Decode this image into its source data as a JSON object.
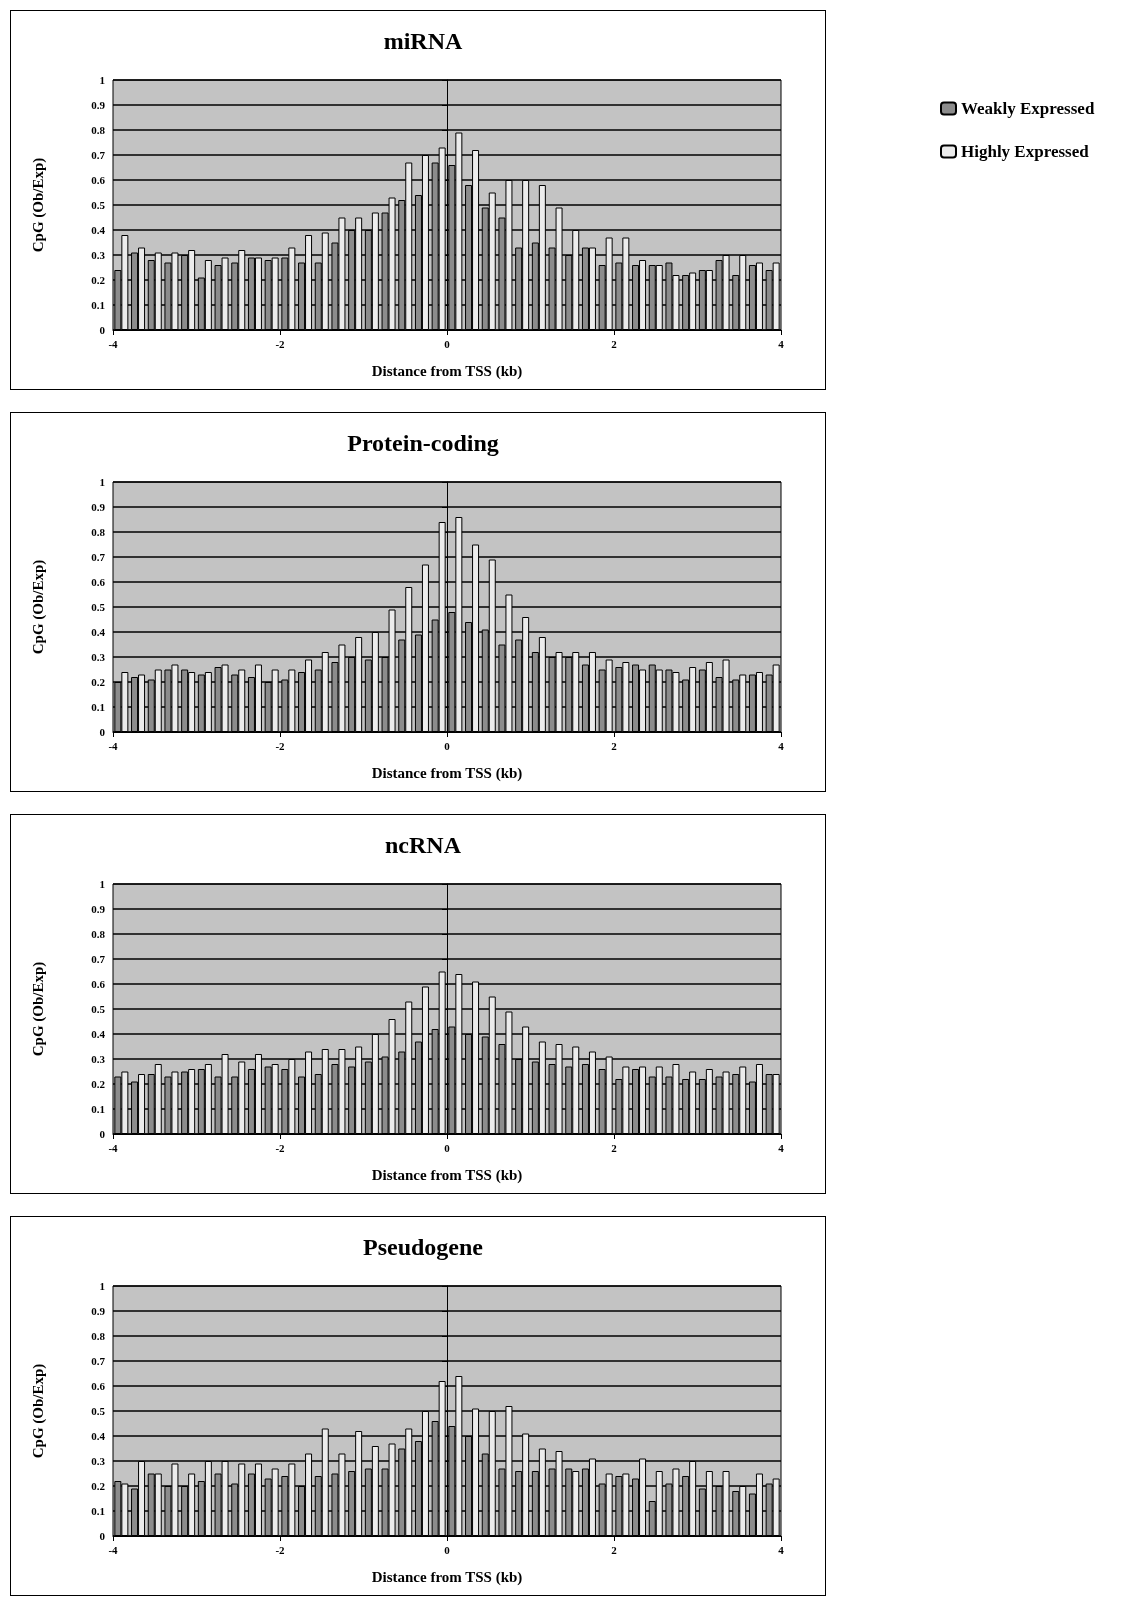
{
  "chart_data": [
    {
      "type": "bar",
      "title": "miRNA",
      "xlabel": "Distance from TSS (kb)",
      "ylabel": "CpG (Ob/Exp)",
      "legend": "right",
      "grid": "y",
      "xlim": [
        -4,
        4
      ],
      "xticks": [
        -4,
        -2,
        0,
        2,
        4
      ],
      "ylim": [
        0,
        1
      ],
      "yticks": [
        0,
        0.1,
        0.2,
        0.3,
        0.4,
        0.5,
        0.6,
        0.7,
        0.8,
        0.9,
        1
      ],
      "x": [
        -3.9,
        -3.7,
        -3.5,
        -3.3,
        -3.1,
        -2.9,
        -2.7,
        -2.5,
        -2.3,
        -2.1,
        -1.9,
        -1.7,
        -1.5,
        -1.3,
        -1.1,
        -0.9,
        -0.7,
        -0.5,
        -0.3,
        -0.1,
        0.1,
        0.3,
        0.5,
        0.7,
        0.9,
        1.1,
        1.3,
        1.5,
        1.7,
        1.9,
        2.1,
        2.3,
        2.5,
        2.7,
        2.9,
        3.1,
        3.3,
        3.5,
        3.7,
        3.9
      ],
      "series": [
        {
          "name": "Weakly Expressed",
          "color": "#8c8c8c",
          "values": [
            0.24,
            0.31,
            0.28,
            0.27,
            0.3,
            0.21,
            0.26,
            0.27,
            0.29,
            0.28,
            0.29,
            0.27,
            0.27,
            0.35,
            0.4,
            0.4,
            0.47,
            0.52,
            0.54,
            0.67,
            0.66,
            0.58,
            0.49,
            0.45,
            0.33,
            0.35,
            0.33,
            0.3,
            0.33,
            0.26,
            0.27,
            0.26,
            0.26,
            0.27,
            0.22,
            0.24,
            0.28,
            0.22,
            0.26,
            0.24
          ]
        },
        {
          "name": "Highly Expressed",
          "color": "#ececec",
          "values": [
            0.38,
            0.33,
            0.31,
            0.31,
            0.32,
            0.28,
            0.29,
            0.32,
            0.29,
            0.29,
            0.33,
            0.38,
            0.39,
            0.45,
            0.45,
            0.47,
            0.53,
            0.67,
            0.7,
            0.73,
            0.79,
            0.72,
            0.55,
            0.6,
            0.6,
            0.58,
            0.49,
            0.4,
            0.33,
            0.37,
            0.37,
            0.28,
            0.26,
            0.22,
            0.23,
            0.24,
            0.3,
            0.3,
            0.27,
            0.27
          ]
        }
      ]
    },
    {
      "type": "bar",
      "title": "Protein-coding",
      "xlabel": "Distance from TSS (kb)",
      "ylabel": "CpG (Ob/Exp)",
      "grid": "y",
      "xlim": [
        -4,
        4
      ],
      "xticks": [
        -4,
        -2,
        0,
        2,
        4
      ],
      "ylim": [
        0,
        1
      ],
      "yticks": [
        0,
        0.1,
        0.2,
        0.3,
        0.4,
        0.5,
        0.6,
        0.7,
        0.8,
        0.9,
        1
      ],
      "x": [
        -3.9,
        -3.7,
        -3.5,
        -3.3,
        -3.1,
        -2.9,
        -2.7,
        -2.5,
        -2.3,
        -2.1,
        -1.9,
        -1.7,
        -1.5,
        -1.3,
        -1.1,
        -0.9,
        -0.7,
        -0.5,
        -0.3,
        -0.1,
        0.1,
        0.3,
        0.5,
        0.7,
        0.9,
        1.1,
        1.3,
        1.5,
        1.7,
        1.9,
        2.1,
        2.3,
        2.5,
        2.7,
        2.9,
        3.1,
        3.3,
        3.5,
        3.7,
        3.9
      ],
      "series": [
        {
          "color": "#8c8c8c",
          "values": [
            0.2,
            0.22,
            0.21,
            0.25,
            0.25,
            0.23,
            0.26,
            0.23,
            0.22,
            0.2,
            0.21,
            0.24,
            0.25,
            0.28,
            0.3,
            0.29,
            0.3,
            0.37,
            0.39,
            0.45,
            0.48,
            0.44,
            0.41,
            0.35,
            0.37,
            0.32,
            0.3,
            0.3,
            0.27,
            0.25,
            0.26,
            0.27,
            0.27,
            0.25,
            0.21,
            0.25,
            0.22,
            0.21,
            0.23,
            0.23
          ]
        },
        {
          "color": "#ececec",
          "values": [
            0.24,
            0.23,
            0.25,
            0.27,
            0.24,
            0.24,
            0.27,
            0.25,
            0.27,
            0.25,
            0.25,
            0.29,
            0.32,
            0.35,
            0.38,
            0.4,
            0.49,
            0.58,
            0.67,
            0.84,
            0.86,
            0.75,
            0.69,
            0.55,
            0.46,
            0.38,
            0.32,
            0.32,
            0.32,
            0.29,
            0.28,
            0.25,
            0.25,
            0.24,
            0.26,
            0.28,
            0.29,
            0.23,
            0.24,
            0.27
          ]
        }
      ]
    },
    {
      "type": "bar",
      "title": "ncRNA",
      "xlabel": "Distance from TSS (kb)",
      "ylabel": "CpG (Ob/Exp)",
      "grid": "y",
      "xlim": [
        -4,
        4
      ],
      "xticks": [
        -4,
        -2,
        0,
        2,
        4
      ],
      "ylim": [
        0,
        1
      ],
      "yticks": [
        0,
        0.1,
        0.2,
        0.3,
        0.4,
        0.5,
        0.6,
        0.7,
        0.8,
        0.9,
        1
      ],
      "x": [
        -3.9,
        -3.7,
        -3.5,
        -3.3,
        -3.1,
        -2.9,
        -2.7,
        -2.5,
        -2.3,
        -2.1,
        -1.9,
        -1.7,
        -1.5,
        -1.3,
        -1.1,
        -0.9,
        -0.7,
        -0.5,
        -0.3,
        -0.1,
        0.1,
        0.3,
        0.5,
        0.7,
        0.9,
        1.1,
        1.3,
        1.5,
        1.7,
        1.9,
        2.1,
        2.3,
        2.5,
        2.7,
        2.9,
        3.1,
        3.3,
        3.5,
        3.7,
        3.9
      ],
      "series": [
        {
          "color": "#8c8c8c",
          "values": [
            0.23,
            0.21,
            0.24,
            0.23,
            0.25,
            0.26,
            0.23,
            0.23,
            0.26,
            0.27,
            0.26,
            0.23,
            0.24,
            0.28,
            0.27,
            0.29,
            0.31,
            0.33,
            0.37,
            0.42,
            0.43,
            0.4,
            0.39,
            0.36,
            0.3,
            0.29,
            0.28,
            0.27,
            0.28,
            0.26,
            0.22,
            0.26,
            0.23,
            0.23,
            0.22,
            0.22,
            0.23,
            0.24,
            0.21,
            0.24
          ]
        },
        {
          "color": "#ececec",
          "values": [
            0.25,
            0.24,
            0.28,
            0.25,
            0.26,
            0.28,
            0.32,
            0.29,
            0.32,
            0.28,
            0.3,
            0.33,
            0.34,
            0.34,
            0.35,
            0.4,
            0.46,
            0.53,
            0.59,
            0.65,
            0.64,
            0.61,
            0.55,
            0.49,
            0.43,
            0.37,
            0.36,
            0.35,
            0.33,
            0.31,
            0.27,
            0.27,
            0.27,
            0.28,
            0.25,
            0.26,
            0.25,
            0.27,
            0.28,
            0.24
          ]
        }
      ]
    },
    {
      "type": "bar",
      "title": "Pseudogene",
      "xlabel": "Distance from TSS (kb)",
      "ylabel": "CpG (Ob/Exp)",
      "grid": "y",
      "xlim": [
        -4,
        4
      ],
      "xticks": [
        -4,
        -2,
        0,
        2,
        4
      ],
      "ylim": [
        0,
        1
      ],
      "yticks": [
        0,
        0.1,
        0.2,
        0.3,
        0.4,
        0.5,
        0.6,
        0.7,
        0.8,
        0.9,
        1
      ],
      "x": [
        -3.9,
        -3.7,
        -3.5,
        -3.3,
        -3.1,
        -2.9,
        -2.7,
        -2.5,
        -2.3,
        -2.1,
        -1.9,
        -1.7,
        -1.5,
        -1.3,
        -1.1,
        -0.9,
        -0.7,
        -0.5,
        -0.3,
        -0.1,
        0.1,
        0.3,
        0.5,
        0.7,
        0.9,
        1.1,
        1.3,
        1.5,
        1.7,
        1.9,
        2.1,
        2.3,
        2.5,
        2.7,
        2.9,
        3.1,
        3.3,
        3.5,
        3.7,
        3.9
      ],
      "series": [
        {
          "color": "#8c8c8c",
          "values": [
            0.22,
            0.19,
            0.25,
            0.2,
            0.2,
            0.22,
            0.25,
            0.21,
            0.25,
            0.23,
            0.24,
            0.2,
            0.24,
            0.25,
            0.26,
            0.27,
            0.27,
            0.35,
            0.38,
            0.46,
            0.44,
            0.4,
            0.33,
            0.27,
            0.26,
            0.26,
            0.27,
            0.27,
            0.27,
            0.21,
            0.24,
            0.23,
            0.14,
            0.21,
            0.24,
            0.19,
            0.2,
            0.18,
            0.17,
            0.21
          ]
        },
        {
          "color": "#ececec",
          "values": [
            0.21,
            0.3,
            0.25,
            0.29,
            0.25,
            0.3,
            0.3,
            0.29,
            0.29,
            0.27,
            0.29,
            0.33,
            0.43,
            0.33,
            0.42,
            0.36,
            0.37,
            0.43,
            0.5,
            0.62,
            0.64,
            0.51,
            0.5,
            0.52,
            0.41,
            0.35,
            0.34,
            0.26,
            0.31,
            0.25,
            0.25,
            0.31,
            0.26,
            0.27,
            0.3,
            0.26,
            0.26,
            0.2,
            0.25,
            0.23
          ]
        }
      ]
    }
  ]
}
